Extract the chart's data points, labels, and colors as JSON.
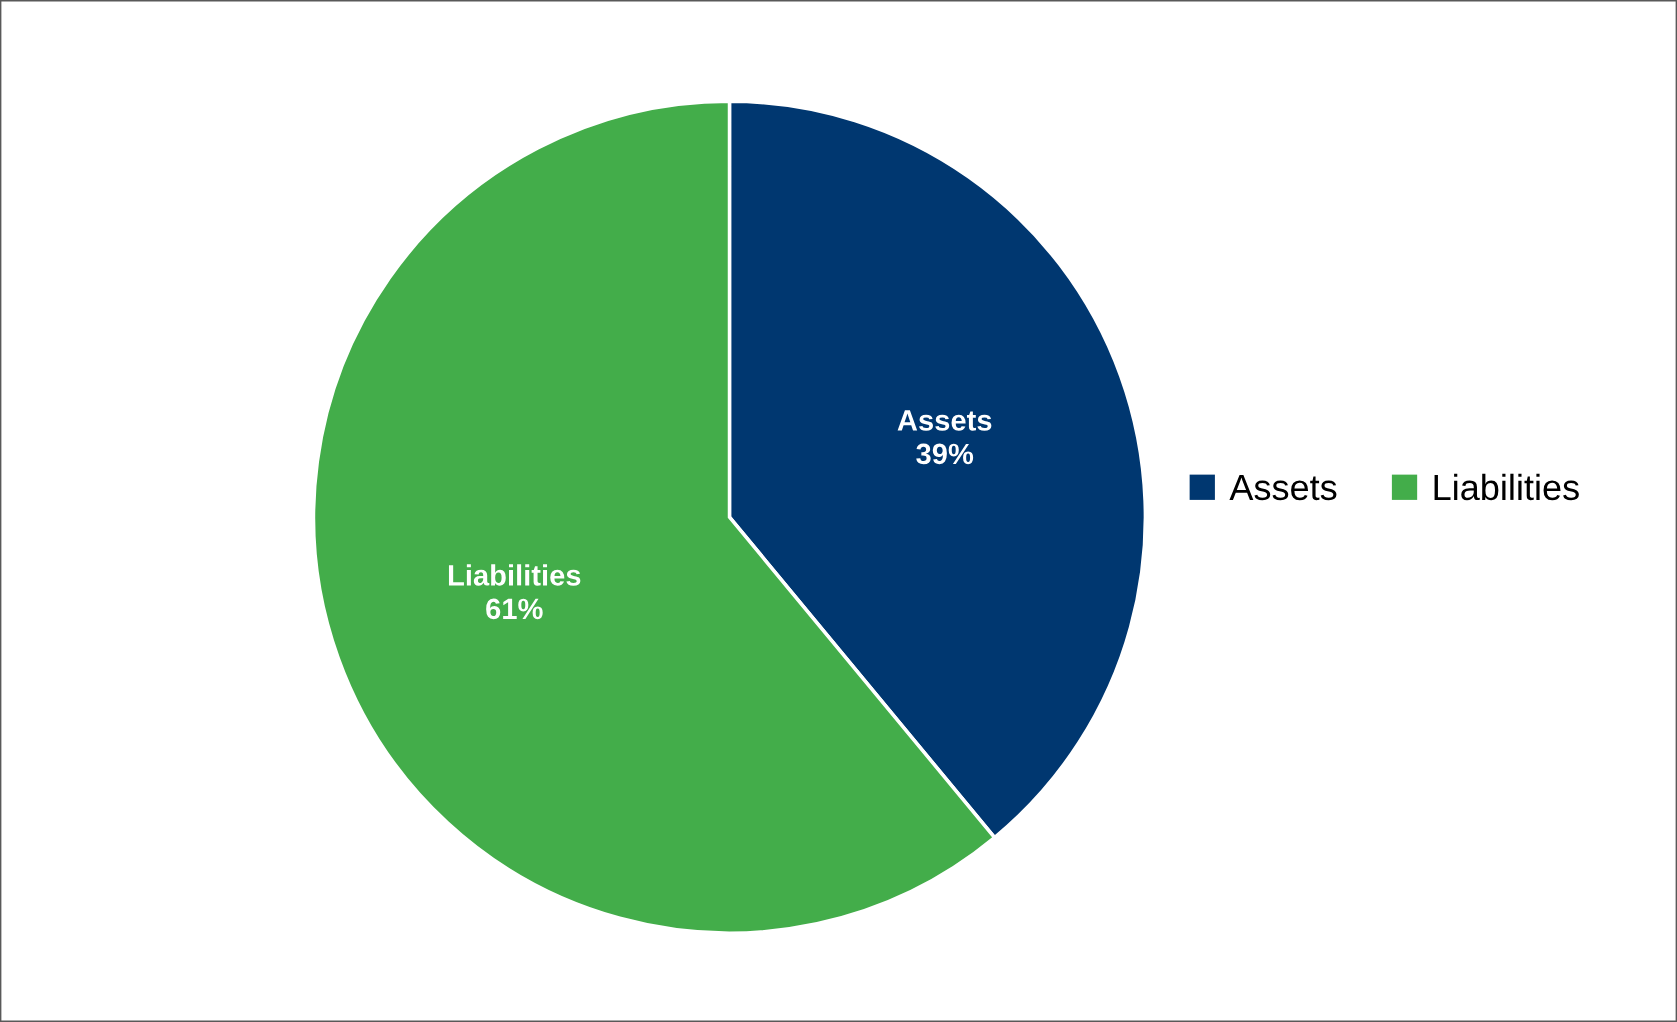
{
  "chart_data": {
    "type": "pie",
    "categories": [
      "Assets",
      "Liabilities"
    ],
    "values": [
      39,
      61
    ],
    "colors": [
      "#003770",
      "#43ad4a"
    ],
    "value_labels": [
      "39%",
      "61%"
    ],
    "legend": "right"
  }
}
